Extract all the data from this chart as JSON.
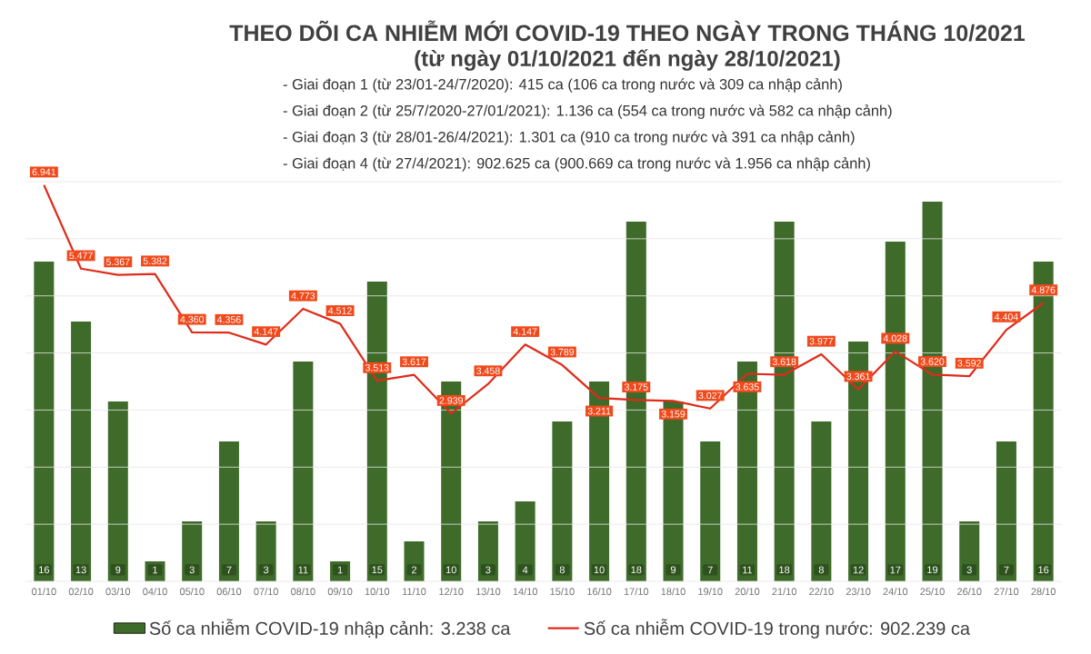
{
  "chart_data": {
    "type": "bar",
    "title": "THEO DÕI CA NHIỄM MỚI COVID-19 THEO NGÀY TRONG THÁNG 10/2021",
    "subtitle": "(từ ngày 01/10/2021 đến ngày 28/10/2021)",
    "annotations": [
      "- Giai đoạn 1 (từ 23/01-24/7/2020): 415 ca (106 ca trong nước và 309 ca nhập cảnh)",
      "- Giai đoạn 2 (từ 25/7/2020-27/01/2021): 1.136 ca (554 ca trong nước và 582 ca nhập cảnh)",
      "- Giai đoạn 3 (từ 28/01-26/4/2021): 1.301 ca (910 ca trong nước và 391 ca nhập cảnh)",
      "- Giai đoạn 4 (từ 27/4/2021): 902.625 ca (900.669 ca trong nước và 1.956 ca nhập cảnh)"
    ],
    "categories": [
      "01/10",
      "02/10",
      "03/10",
      "04/10",
      "05/10",
      "06/10",
      "07/10",
      "08/10",
      "09/10",
      "10/10",
      "11/10",
      "12/10",
      "13/10",
      "14/10",
      "15/10",
      "16/10",
      "17/10",
      "18/10",
      "19/10",
      "20/10",
      "21/10",
      "22/10",
      "23/10",
      "24/10",
      "25/10",
      "26/10",
      "27/10",
      "28/10"
    ],
    "series": [
      {
        "name": "Số ca nhiễm COVID-19 nhập cảnh: 3.238 ca",
        "color": "#3e6b2a",
        "values": [
          16,
          13,
          9,
          1,
          3,
          7,
          3,
          11,
          1,
          15,
          2,
          10,
          3,
          4,
          8,
          10,
          18,
          9,
          7,
          11,
          18,
          8,
          12,
          17,
          19,
          3,
          7,
          16
        ]
      },
      {
        "name": "Số ca nhiễm COVID-19 trong nước: 902.239 ca",
        "type": "line",
        "axis": "y2",
        "color": "#e02a1a",
        "values": [
          6941,
          5477,
          5367,
          5382,
          4360,
          4356,
          4147,
          4773,
          4512,
          3513,
          3617,
          2939,
          3458,
          4147,
          3789,
          3211,
          3175,
          3159,
          3027,
          3635,
          3618,
          3977,
          3361,
          4028,
          3620,
          3592,
          4404,
          4876
        ],
        "value_labels": [
          "6.941",
          "5.477",
          "5.367",
          "5.382",
          "4.360",
          "4.356",
          "4.147",
          "4.773",
          "4.512",
          "3.513",
          "3.617",
          "2.939",
          "3.458",
          "4.147",
          "3.789",
          "3.211",
          "3.175",
          "3.159",
          "3.027",
          "3.635",
          "3.618",
          "3.977",
          "3.361",
          "4.028",
          "3.620",
          "3.592",
          "4.404",
          "4.876"
        ]
      }
    ],
    "data_labels": true,
    "ylim": [
      0,
      20
    ],
    "y2lim": [
      0,
      7000
    ],
    "y2ticks": [
      {
        "value": 0,
        "label": null
      },
      {
        "value": 1000,
        "label": null
      },
      {
        "value": 2000,
        "label": null
      },
      {
        "value": 3000,
        "label": null
      },
      {
        "value": 4000,
        "label": null
      },
      {
        "value": 5000,
        "label": null
      },
      {
        "value": 6000,
        "label": null
      },
      {
        "value": 7000,
        "label": null
      }
    ],
    "tick_labels": "x",
    "grid": "y",
    "legend": "bottom"
  }
}
